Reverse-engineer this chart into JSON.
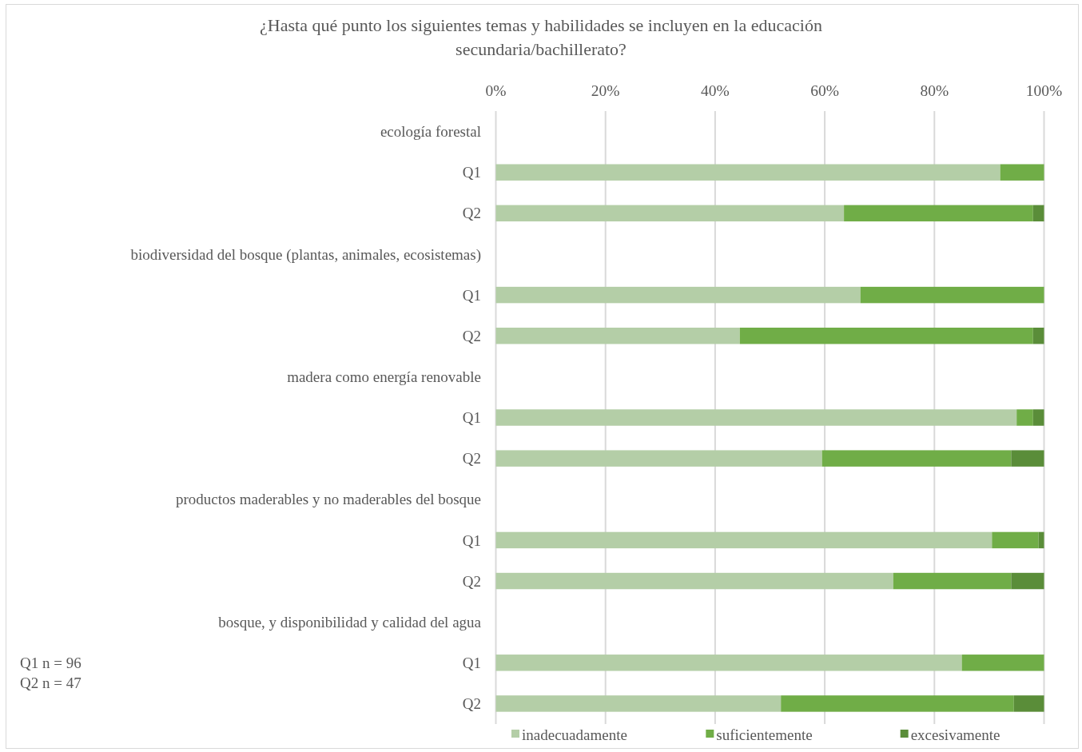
{
  "chart_data": {
    "type": "bar",
    "orientation": "horizontal",
    "stacked": true,
    "title": "¿Hasta qué punto los siguientes temas y habilidades se incluyen en la educación secundaria/bachillerato?",
    "categories": [
      "ecología forestal",
      "Q1",
      "Q2",
      "biodiversidad del bosque (plantas, animales, ecosistemas)",
      "Q1",
      "Q2",
      "madera como energía renovable",
      "Q1",
      "Q2",
      "productos maderables y no maderables del bosque",
      "Q1",
      "Q2",
      "bosque, y disponibilidad y calidad del agua",
      "Q1",
      "Q2"
    ],
    "series": [
      {
        "name": "inadecuadamente",
        "color": "#b4cea7",
        "values": [
          null,
          92,
          63.5,
          null,
          66.5,
          44.5,
          null,
          95,
          59.5,
          null,
          90.5,
          72.5,
          null,
          85,
          52
        ]
      },
      {
        "name": "suficientemente",
        "color": "#70ad47",
        "values": [
          null,
          8,
          34.5,
          null,
          33.5,
          53.5,
          null,
          3,
          34.5,
          null,
          8.5,
          21.5,
          null,
          15,
          42.5
        ]
      },
      {
        "name": "excesivamente",
        "color": "#5a8d39",
        "values": [
          null,
          0,
          2,
          null,
          0,
          2,
          null,
          2,
          6,
          null,
          1,
          6,
          null,
          0,
          5.5
        ]
      }
    ],
    "xlim": [
      0,
      100
    ],
    "xticks": [
      {
        "value": 0,
        "label": "0%"
      },
      {
        "value": 20,
        "label": "20%"
      },
      {
        "value": 40,
        "label": "40%"
      },
      {
        "value": 60,
        "label": "60%"
      },
      {
        "value": 80,
        "label": "80%"
      },
      {
        "value": 100,
        "label": "100%"
      }
    ],
    "grid": "x",
    "legend": "bottom",
    "annotations": [
      "Q1 n = 96",
      "Q2 n = 47"
    ]
  }
}
